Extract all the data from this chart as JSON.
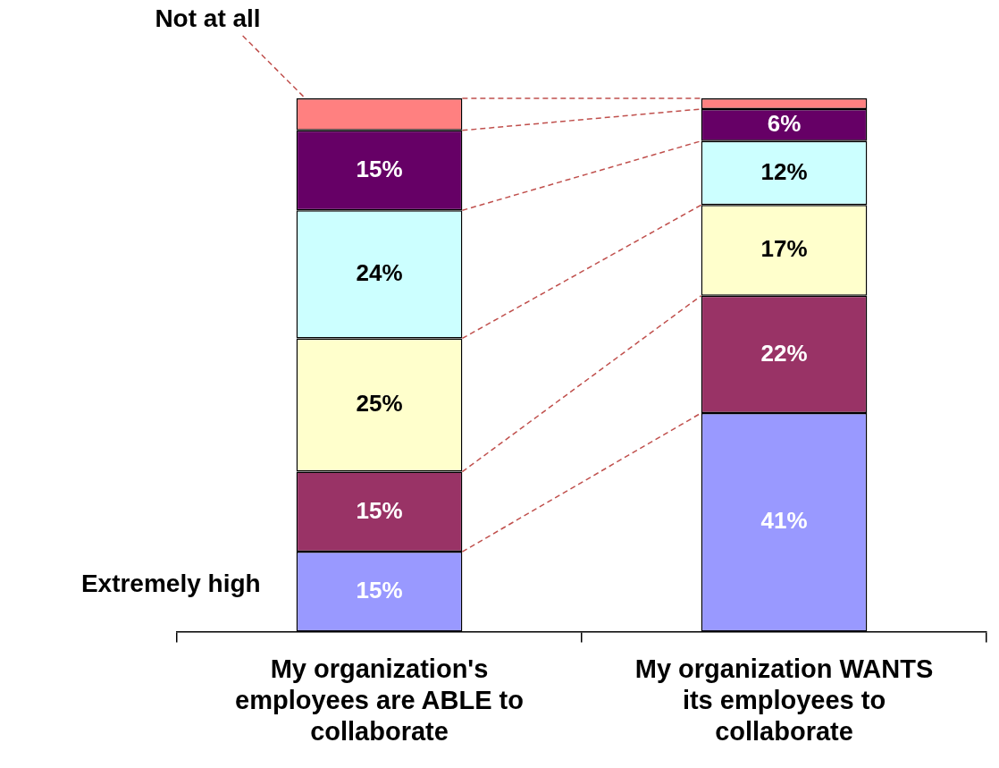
{
  "chart_data": {
    "type": "bar",
    "stacked": true,
    "categories": [
      "My organization's employees are ABLE to collaborate",
      "My organization WANTS its employees to collaborate"
    ],
    "ylim": [
      0,
      100
    ],
    "tick_labels": "x",
    "grid": false,
    "legend": false,
    "series": [
      {
        "name": "Extremely high",
        "color": "#9999ff",
        "values": [
          15,
          41
        ],
        "value_labels": [
          "15%",
          "41%"
        ]
      },
      {
        "color": "#993366",
        "values": [
          15,
          22
        ],
        "value_labels": [
          "15%",
          "22%"
        ]
      },
      {
        "color": "#ffffcc",
        "values": [
          25,
          17
        ],
        "value_labels": [
          "25%",
          "17%"
        ]
      },
      {
        "color": "#ccffff",
        "values": [
          24,
          12
        ],
        "value_labels": [
          "24%",
          "12%"
        ]
      },
      {
        "color": "#660066",
        "values": [
          15,
          6
        ],
        "value_labels": [
          "15%",
          "6%"
        ]
      },
      {
        "name": "Not at all",
        "color": "#ff8080",
        "values": [
          6,
          2
        ],
        "value_labels": [
          null,
          null
        ]
      }
    ]
  }
}
